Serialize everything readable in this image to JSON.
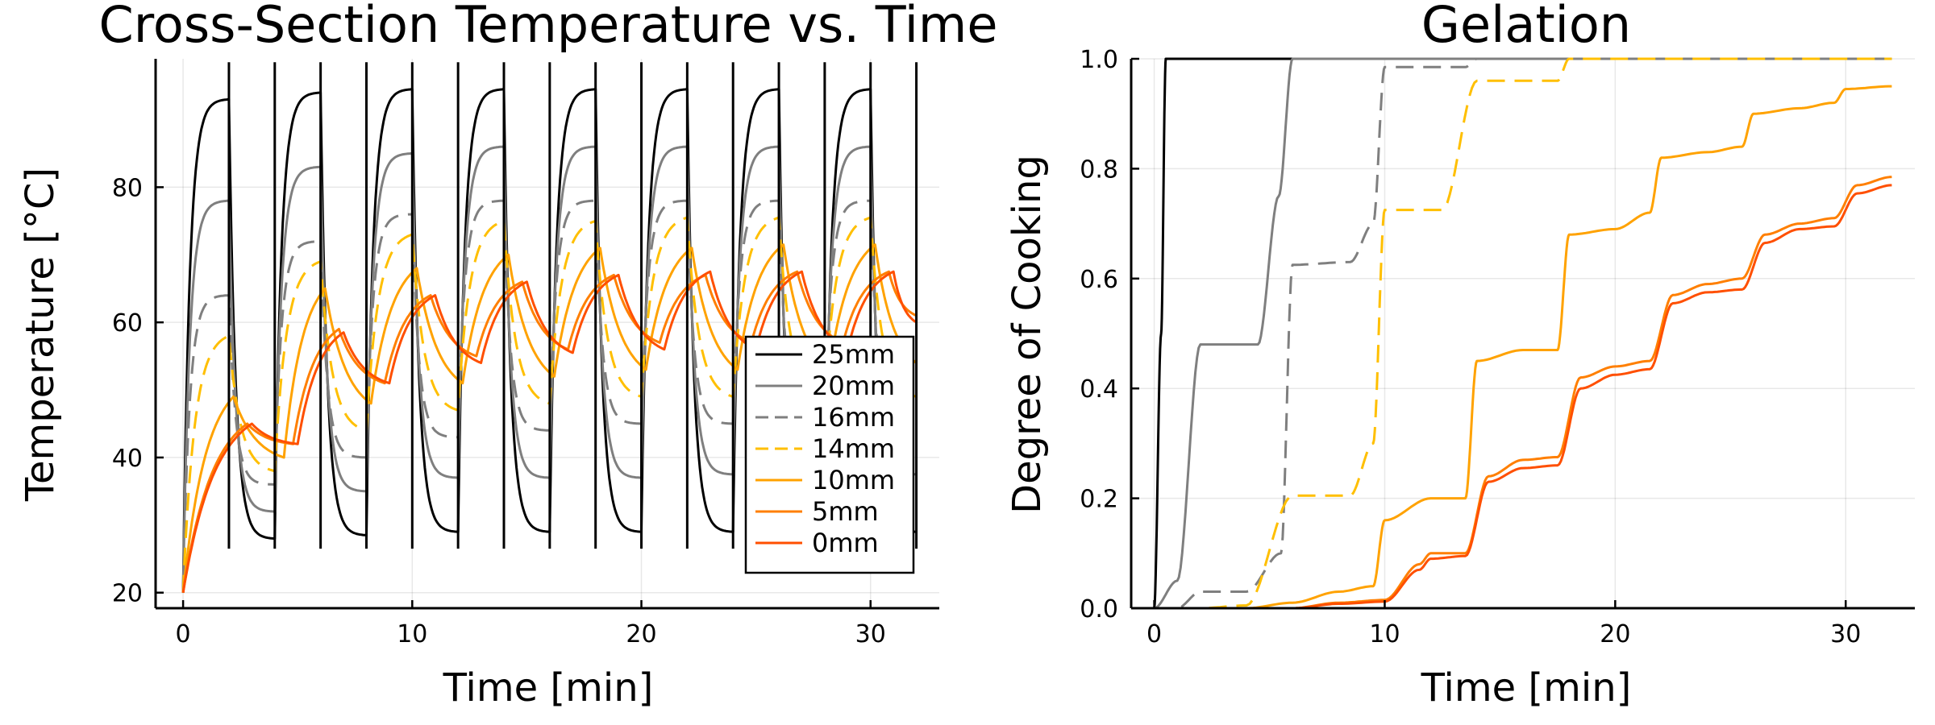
{
  "chart_data": [
    {
      "type": "line",
      "title": "Cross-Section Temperature vs. Time",
      "xlabel": "Time [min]",
      "ylabel": "Temperature [°C]",
      "xlim": [
        -1.2,
        33
      ],
      "ylim": [
        17.7,
        99
      ],
      "xticks": [
        0,
        10,
        20,
        30
      ],
      "yticks": [
        20,
        40,
        60,
        80
      ],
      "grid": true,
      "legend_position": "bottom-right",
      "flip_period_min": 2,
      "series": [
        {
          "name": "25mm",
          "color": "#000000",
          "dash": "solid",
          "x": [
            0,
            2,
            4,
            6,
            8,
            10,
            12,
            14,
            16,
            18,
            20,
            22,
            24,
            26,
            28,
            30,
            32
          ],
          "y": [
            20,
            93,
            28,
            94,
            28.5,
            94.5,
            29,
            94.5,
            29,
            94.5,
            29,
            94.5,
            29,
            94.5,
            29,
            94.5,
            29
          ]
        },
        {
          "name": "20mm",
          "color": "#7f7f7f",
          "dash": "solid",
          "x": [
            0,
            2,
            4,
            6,
            8,
            10,
            12,
            14,
            16,
            18,
            20,
            22,
            24,
            26,
            28,
            30,
            32
          ],
          "y": [
            20,
            78,
            32,
            83,
            35,
            85,
            37,
            86,
            37,
            86,
            37,
            86,
            37.5,
            86,
            37.5,
            86,
            37.5
          ]
        },
        {
          "name": "16mm",
          "color": "#7f7f7f",
          "dash": "dashed",
          "x": [
            0,
            2,
            4,
            6,
            8,
            10,
            12,
            14,
            16,
            18,
            20,
            22,
            24,
            26,
            28,
            30,
            32
          ],
          "y": [
            20,
            64,
            36,
            72,
            40,
            76,
            43,
            78,
            44,
            78,
            45,
            78,
            45,
            78,
            45,
            78,
            45
          ]
        },
        {
          "name": "14mm",
          "color": "#ffbf00",
          "dash": "dashed",
          "x": [
            0,
            2,
            4,
            6,
            8,
            10,
            12,
            14,
            16,
            18,
            20,
            22,
            24,
            26,
            28,
            30,
            32
          ],
          "y": [
            20,
            58,
            38,
            69,
            44,
            73,
            47,
            75,
            48,
            75,
            49,
            75.5,
            49,
            75.5,
            49,
            75.5,
            49
          ]
        },
        {
          "name": "10mm",
          "color": "#ffa200",
          "dash": "solid",
          "x": [
            0,
            2.2,
            4.4,
            6.2,
            8.2,
            10.2,
            12.2,
            14.2,
            16.2,
            18.2,
            20.2,
            22.2,
            24.2,
            26.2,
            28.2,
            30.2,
            32
          ],
          "y": [
            20,
            49,
            40,
            65,
            48,
            68,
            51,
            70,
            52,
            71,
            53,
            71,
            53,
            71.5,
            53,
            71.5,
            54
          ]
        },
        {
          "name": "5mm",
          "color": "#ff7f00",
          "dash": "solid",
          "x": [
            0,
            2.8,
            4.8,
            6.8,
            8.8,
            10.8,
            12.8,
            14.8,
            16.8,
            18.8,
            20.8,
            22.8,
            24.8,
            26.8,
            28.8,
            30.8,
            32
          ],
          "y": [
            20,
            45,
            42,
            59,
            51,
            64,
            55,
            66,
            56,
            67,
            57,
            67,
            57,
            67.5,
            57,
            67.5,
            61
          ]
        },
        {
          "name": "0mm",
          "color": "#ff4f00",
          "dash": "solid",
          "x": [
            0,
            3,
            5,
            7,
            9,
            11,
            13,
            15,
            17,
            19,
            21,
            23,
            25,
            27,
            29,
            31,
            32
          ],
          "y": [
            20,
            45,
            42,
            58.5,
            51,
            64,
            54,
            66,
            55.5,
            67,
            56,
            67.5,
            56,
            67.5,
            56,
            67.5,
            60
          ]
        }
      ]
    },
    {
      "type": "line",
      "title": "Gelation",
      "xlabel": "Time [min]",
      "ylabel": "Degree of Cooking",
      "xlim": [
        -1,
        33
      ],
      "ylim": [
        0,
        1
      ],
      "xticks": [
        0,
        10,
        20,
        30
      ],
      "yticks": [
        0.0,
        0.2,
        0.4,
        0.6,
        0.8,
        1.0
      ],
      "ytick_labels": [
        "0.0",
        "0.2",
        "0.4",
        "0.6",
        "0.8",
        "1.0"
      ],
      "grid": true,
      "series": [
        {
          "name": "25mm",
          "color": "#000000",
          "dash": "solid",
          "x": [
            0,
            0.3,
            0.5,
            32
          ],
          "y": [
            0,
            0.5,
            1,
            1
          ]
        },
        {
          "name": "20mm",
          "color": "#7f7f7f",
          "dash": "solid",
          "x": [
            0,
            1,
            2,
            4.5,
            5.4,
            6,
            32
          ],
          "y": [
            0,
            0.05,
            0.48,
            0.48,
            0.75,
            1,
            1
          ]
        },
        {
          "name": "16mm",
          "color": "#7f7f7f",
          "dash": "dashed",
          "x": [
            0,
            1,
            2,
            4,
            5.5,
            6,
            8.5,
            9.5,
            10,
            13.5,
            14,
            32
          ],
          "y": [
            0,
            0,
            0.03,
            0.03,
            0.1,
            0.625,
            0.63,
            0.7,
            0.985,
            0.985,
            1,
            1
          ]
        },
        {
          "name": "14mm",
          "color": "#ffbf00",
          "dash": "dashed",
          "x": [
            0,
            2,
            4,
            6,
            8.5,
            9.5,
            10,
            12.5,
            14,
            17.5,
            18,
            32
          ],
          "y": [
            0,
            0,
            0.005,
            0.205,
            0.205,
            0.3,
            0.725,
            0.725,
            0.96,
            0.96,
            1,
            1
          ]
        },
        {
          "name": "10mm",
          "color": "#ffa200",
          "dash": "solid",
          "x": [
            0,
            4,
            6,
            8,
            9.5,
            10,
            12,
            13.5,
            14,
            16,
            17.5,
            18,
            20,
            21.5,
            22,
            24,
            25.5,
            26,
            28,
            29.5,
            30,
            32
          ],
          "y": [
            0,
            0,
            0.01,
            0.03,
            0.04,
            0.16,
            0.2,
            0.2,
            0.45,
            0.47,
            0.47,
            0.68,
            0.69,
            0.72,
            0.82,
            0.83,
            0.84,
            0.9,
            0.91,
            0.92,
            0.945,
            0.95
          ]
        },
        {
          "name": "5mm",
          "color": "#ff7f00",
          "dash": "solid",
          "x": [
            0,
            6,
            8,
            10,
            11.5,
            12,
            13.5,
            14.5,
            16,
            17.5,
            18.5,
            20,
            21.5,
            22.5,
            24,
            25.5,
            26.5,
            28,
            29.5,
            30.5,
            32
          ],
          "y": [
            0,
            0,
            0.01,
            0.015,
            0.08,
            0.1,
            0.1,
            0.24,
            0.27,
            0.275,
            0.42,
            0.44,
            0.45,
            0.57,
            0.59,
            0.6,
            0.68,
            0.7,
            0.71,
            0.77,
            0.785
          ]
        },
        {
          "name": "0mm",
          "color": "#ff4f00",
          "dash": "solid",
          "x": [
            0,
            6,
            8,
            10,
            11.5,
            12,
            13.5,
            14.5,
            16,
            17.5,
            18.5,
            20,
            21.5,
            22.5,
            24,
            25.5,
            26.5,
            28,
            29.5,
            30.5,
            32
          ],
          "y": [
            0,
            0,
            0.008,
            0.012,
            0.07,
            0.09,
            0.095,
            0.23,
            0.255,
            0.26,
            0.4,
            0.425,
            0.435,
            0.555,
            0.575,
            0.58,
            0.665,
            0.69,
            0.695,
            0.755,
            0.77
          ]
        }
      ]
    }
  ]
}
